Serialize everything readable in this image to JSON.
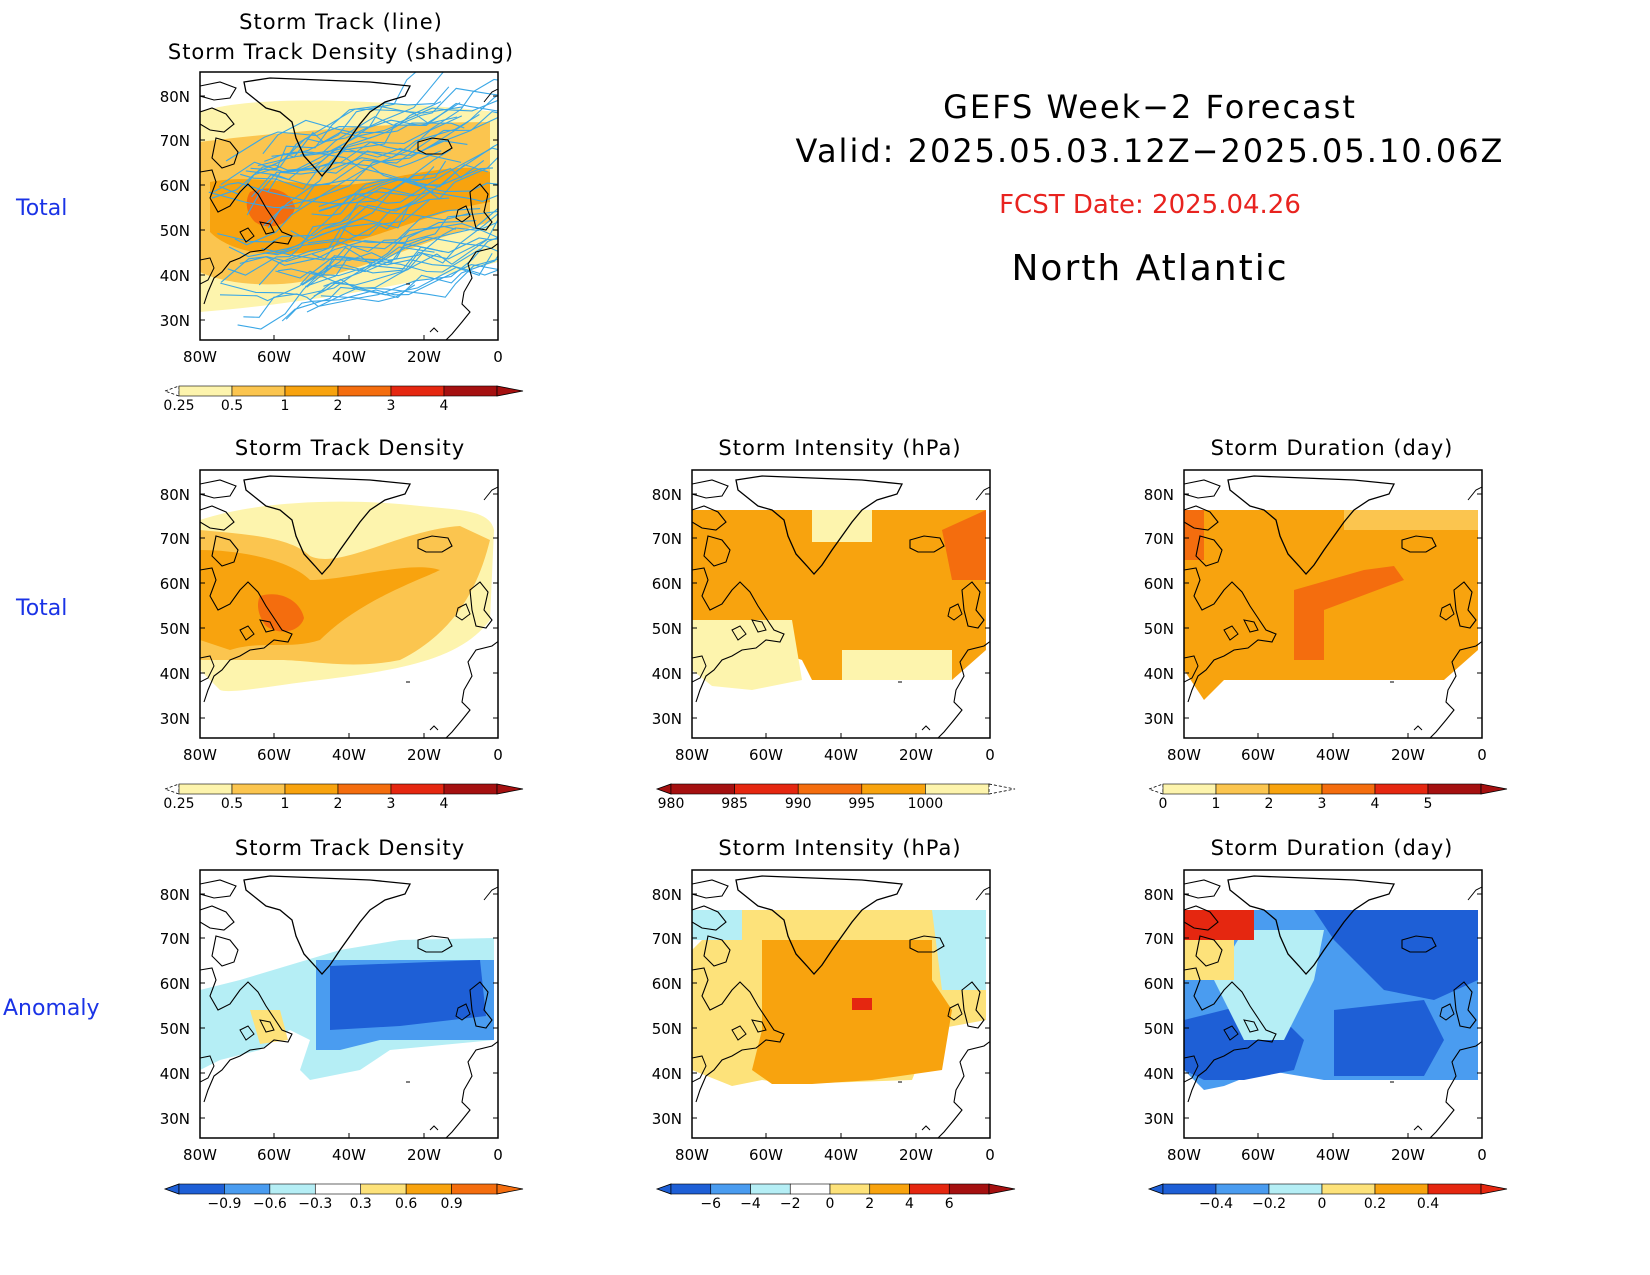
{
  "header": {
    "title": "GEFS Week−2 Forecast",
    "valid": "Valid: 2025.05.03.12Z−2025.05.10.06Z",
    "fcst_date": "FCST Date: 2025.04.26",
    "region": "North Atlantic"
  },
  "row_labels": [
    "Total",
    "Total",
    "Anomaly"
  ],
  "axes": {
    "lat_ticks": [
      "80N",
      "70N",
      "60N",
      "50N",
      "40N",
      "30N"
    ],
    "lon_ticks": [
      "80W",
      "60W",
      "40W",
      "20W",
      "0"
    ]
  },
  "panels": [
    {
      "title_line1": "Storm Track (line)",
      "title_line2": "Storm Track Density (shading)",
      "field": "storm-track-density-with-tracks",
      "colorbar": {
        "labels": [
          "0.25",
          "0.5",
          "1",
          "2",
          "3",
          "4"
        ],
        "colors": [
          "#fdf4ad",
          "#fbc54f",
          "#f8a30e",
          "#f46d0e",
          "#e52710",
          "#a51010"
        ],
        "extend": "both"
      }
    },
    {
      "title_line1": "Storm Track Density",
      "field": "storm-track-density",
      "colorbar": {
        "labels": [
          "0.25",
          "0.5",
          "1",
          "2",
          "3",
          "4"
        ],
        "colors": [
          "#fdf4ad",
          "#fbc54f",
          "#f8a30e",
          "#f46d0e",
          "#e52710",
          "#a51010"
        ],
        "extend": "both"
      }
    },
    {
      "title_line1": "Storm Intensity (hPa)",
      "field": "storm-intensity",
      "colorbar": {
        "labels": [
          "980",
          "985",
          "990",
          "995",
          "1000"
        ],
        "colors": [
          "#a51010",
          "#e52710",
          "#f46d0e",
          "#f8a30e",
          "#fdf4ad"
        ],
        "extend": "both"
      }
    },
    {
      "title_line1": "Storm Duration (day)",
      "field": "storm-duration",
      "colorbar": {
        "labels": [
          "0",
          "1",
          "2",
          "3",
          "4",
          "5"
        ],
        "colors": [
          "#fdf4ad",
          "#fbc54f",
          "#f8a30e",
          "#f46d0e",
          "#e52710",
          "#a51010"
        ],
        "extend": "both"
      }
    },
    {
      "title_line1": "Storm Track Density",
      "field": "storm-track-density-anomaly",
      "colorbar": {
        "labels": [
          "−0.9",
          "−0.6",
          "−0.3",
          "0.3",
          "0.6",
          "0.9"
        ],
        "colors": [
          "#1e5fd6",
          "#4a9cf0",
          "#b5eef5",
          "#ffffff",
          "#fde27a",
          "#f8a30e",
          "#f46d0e"
        ],
        "extend": "both"
      }
    },
    {
      "title_line1": "Storm Intensity (hPa)",
      "field": "storm-intensity-anomaly",
      "colorbar": {
        "labels": [
          "−6",
          "−4",
          "−2",
          "0",
          "2",
          "4",
          "6"
        ],
        "colors": [
          "#1e5fd6",
          "#4a9cf0",
          "#b5eef5",
          "#ffffff",
          "#fde27a",
          "#f8a30e",
          "#e52710",
          "#a51010"
        ],
        "extend": "both"
      }
    },
    {
      "title_line1": "Storm Duration (day)",
      "field": "storm-duration-anomaly",
      "colorbar": {
        "labels": [
          "−0.4",
          "−0.2",
          "0",
          "0.2",
          "0.4"
        ],
        "colors": [
          "#1e5fd6",
          "#4a9cf0",
          "#b5eef5",
          "#fde27a",
          "#f8a30e",
          "#e52710"
        ],
        "extend": "both"
      }
    }
  ]
}
